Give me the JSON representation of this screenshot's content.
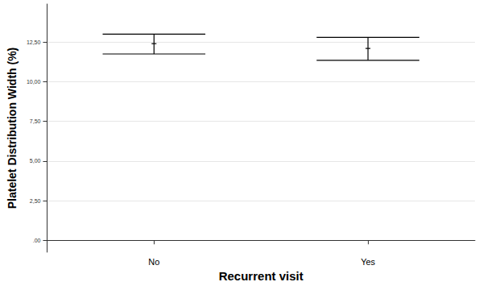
{
  "chart_data": {
    "type": "errorbar",
    "x_label": "Recurrent visit",
    "y_label": "Platelet Distribution Width (%)",
    "categories": [
      "No",
      "Yes"
    ],
    "values": [
      12.4,
      12.1
    ],
    "lower": [
      11.75,
      11.35
    ],
    "upper": [
      13.0,
      12.8
    ],
    "color": "#000000",
    "ylim": [
      -0.75,
      14.9
    ],
    "yticks": [
      {
        "value": 0,
        "label": ".00"
      },
      {
        "value": 2.5,
        "label": "2,50"
      },
      {
        "value": 5,
        "label": "5,00"
      },
      {
        "value": 7.5,
        "label": "7,50"
      },
      {
        "value": 10,
        "label": "10,00"
      },
      {
        "value": 12.5,
        "label": "12,50"
      }
    ],
    "grid": true
  }
}
